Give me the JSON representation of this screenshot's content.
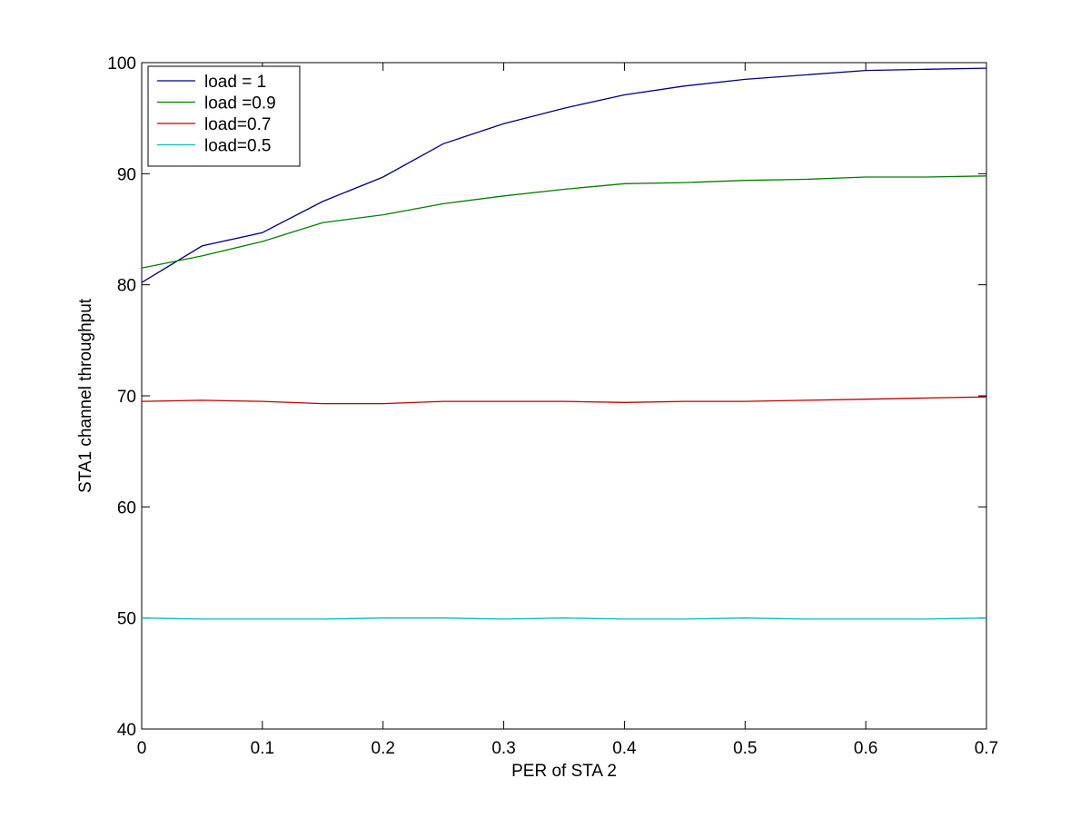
{
  "chart_data": {
    "type": "line",
    "title": "",
    "xlabel": "PER of STA 2",
    "ylabel": "STA1  channel throughput",
    "xlim": [
      0,
      0.7
    ],
    "ylim": [
      40,
      100
    ],
    "xticks": [
      0,
      0.1,
      0.2,
      0.3,
      0.4,
      0.5,
      0.6,
      0.7
    ],
    "xtick_labels": [
      "0",
      "0.1",
      "0.2",
      "0.3",
      "0.4",
      "0.5",
      "0.6",
      "0.7"
    ],
    "yticks": [
      40,
      50,
      60,
      70,
      80,
      90,
      100
    ],
    "ytick_labels": [
      "40",
      "50",
      "60",
      "70",
      "80",
      "90",
      "100"
    ],
    "grid": false,
    "legend_position": "top-left",
    "series": [
      {
        "name": " load = 1",
        "color": "#00007f",
        "x": [
          0,
          0.05,
          0.1,
          0.15,
          0.2,
          0.25,
          0.3,
          0.35,
          0.4,
          0.45,
          0.5,
          0.55,
          0.6,
          0.65,
          0.7
        ],
        "y": [
          80.2,
          83.5,
          84.7,
          87.5,
          89.7,
          92.7,
          94.5,
          95.9,
          97.1,
          97.9,
          98.5,
          98.9,
          99.3,
          99.4,
          99.5
        ]
      },
      {
        "name": "load =0.9",
        "color": "#007f00",
        "x": [
          0,
          0.05,
          0.1,
          0.15,
          0.2,
          0.25,
          0.3,
          0.35,
          0.4,
          0.45,
          0.5,
          0.55,
          0.6,
          0.65,
          0.7
        ],
        "y": [
          81.5,
          82.6,
          83.9,
          85.6,
          86.3,
          87.3,
          88.0,
          88.6,
          89.1,
          89.2,
          89.4,
          89.5,
          89.7,
          89.7,
          89.8
        ]
      },
      {
        "name": "load=0.7",
        "color": "#bf0000",
        "x": [
          0,
          0.05,
          0.1,
          0.15,
          0.2,
          0.25,
          0.3,
          0.35,
          0.4,
          0.45,
          0.5,
          0.55,
          0.6,
          0.65,
          0.7
        ],
        "y": [
          69.5,
          69.6,
          69.5,
          69.3,
          69.3,
          69.5,
          69.5,
          69.5,
          69.4,
          69.5,
          69.5,
          69.6,
          69.7,
          69.8,
          69.9
        ]
      },
      {
        "name": "load=0.5",
        "color": "#00bfbf",
        "x": [
          0,
          0.05,
          0.1,
          0.15,
          0.2,
          0.25,
          0.3,
          0.35,
          0.4,
          0.45,
          0.5,
          0.55,
          0.6,
          0.65,
          0.7
        ],
        "y": [
          50.0,
          49.9,
          49.9,
          49.9,
          50.0,
          50.0,
          49.9,
          50.0,
          49.9,
          49.9,
          50.0,
          49.9,
          49.9,
          49.9,
          50.0
        ]
      }
    ]
  }
}
